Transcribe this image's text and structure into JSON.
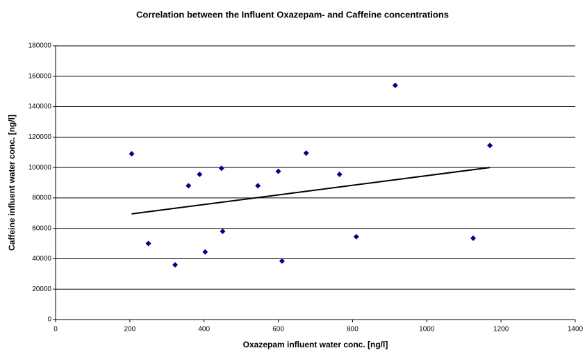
{
  "chart_data": {
    "type": "scatter",
    "title": "Correlation between the Influent Oxazepam- and Caffeine concentrations",
    "xlabel": "Oxazepam influent water conc. [ng/l]",
    "ylabel": "Caffeine influent water conc. [ng/l]",
    "series": [
      {
        "color": "#000080",
        "x": [
          205,
          250,
          322,
          358,
          388,
          403,
          447,
          450,
          545,
          600,
          610,
          675,
          765,
          810,
          915,
          1125,
          1170
        ],
        "values": [
          109000,
          50000,
          36000,
          88000,
          95500,
          44500,
          99500,
          58000,
          88000,
          97500,
          38500,
          109500,
          95500,
          54500,
          154000,
          53500,
          114500
        ]
      }
    ],
    "trendline": {
      "color": "#000000",
      "x": [
        205,
        1170
      ],
      "values": [
        69500,
        100000
      ]
    },
    "xlim": [
      0,
      1400
    ],
    "xticks": [
      0,
      200,
      400,
      600,
      800,
      1000,
      1200,
      1400
    ],
    "ylim": [
      0,
      180000
    ],
    "yticks": [
      0,
      20000,
      40000,
      60000,
      80000,
      100000,
      120000,
      140000,
      160000,
      180000
    ],
    "grid": true
  }
}
